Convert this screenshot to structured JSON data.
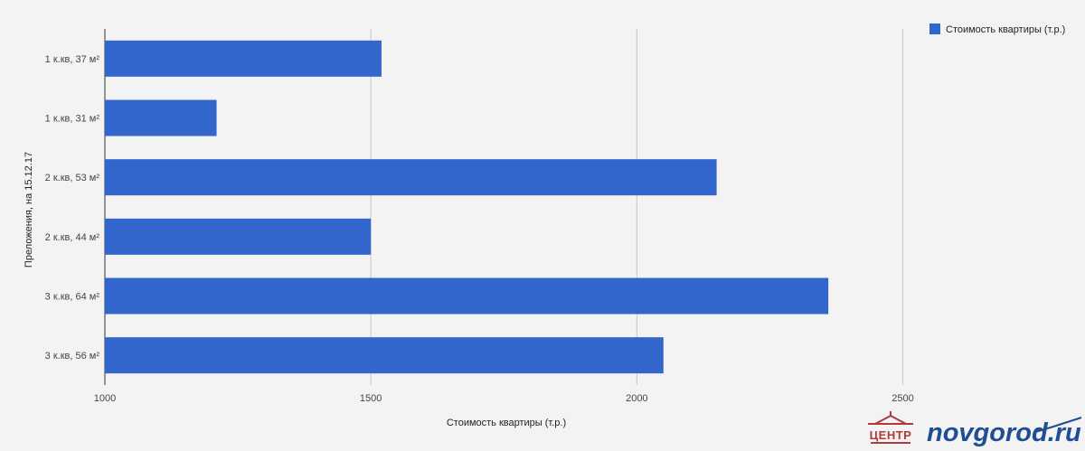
{
  "chart_data": {
    "type": "bar",
    "orientation": "horizontal",
    "categories": [
      "1 к.кв, 37 м²",
      "1 к.кв, 31 м²",
      "2 к.кв, 53 м²",
      "2 к.кв, 44 м²",
      "3 к.кв, 64 м²",
      "3 к.кв, 56 м²"
    ],
    "series": [
      {
        "name": "Стоимость квартиры (т.р.)",
        "values": [
          1520,
          1210,
          2150,
          1500,
          2360,
          2050
        ],
        "color": "#3366cc"
      }
    ],
    "xlabel": "Стоимость квартиры (т.р.)",
    "ylabel": "Преложения, на 15.12.17",
    "xlim": [
      1000,
      2800
    ],
    "xticks": [
      1000,
      1500,
      2000,
      2500
    ],
    "grid": true,
    "legend": "top-right"
  },
  "watermark": {
    "logo_text": "ЦЕНТР",
    "site_text": "novgorod.ru"
  }
}
